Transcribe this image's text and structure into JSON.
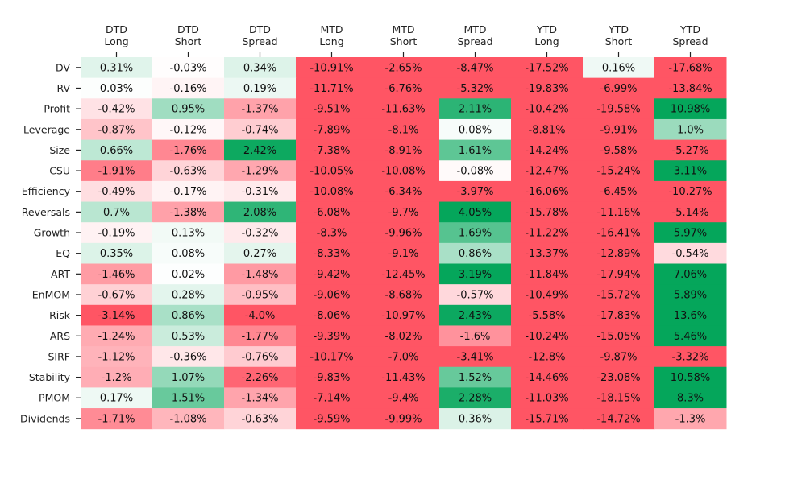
{
  "chart_data": {
    "type": "heatmap",
    "title": "",
    "xlabel": "",
    "ylabel": "",
    "colormap": {
      "negative": "#ff5564",
      "neutral": "#ffffff",
      "positive": "#05a65b",
      "scale_limit": 2.5
    },
    "columns": [
      [
        "DTD",
        "Long"
      ],
      [
        "DTD",
        "Short"
      ],
      [
        "DTD",
        "Spread"
      ],
      [
        "MTD",
        "Long"
      ],
      [
        "MTD",
        "Short"
      ],
      [
        "MTD",
        "Spread"
      ],
      [
        "YTD",
        "Long"
      ],
      [
        "YTD",
        "Short"
      ],
      [
        "YTD",
        "Spread"
      ]
    ],
    "rows": [
      "DV",
      "RV",
      "Profit",
      "Leverage",
      "Size",
      "CSU",
      "Efficiency",
      "Reversals",
      "Growth",
      "EQ",
      "ART",
      "EnMOM",
      "Risk",
      "ARS",
      "SIRF",
      "Stability",
      "PMOM",
      "Dividends"
    ],
    "values": [
      [
        0.31,
        -0.03,
        0.34,
        -10.91,
        -2.65,
        -8.47,
        -17.52,
        0.16,
        -17.68
      ],
      [
        0.03,
        -0.16,
        0.19,
        -11.71,
        -6.76,
        -5.32,
        -19.83,
        -6.99,
        -13.84
      ],
      [
        -0.42,
        0.95,
        -1.37,
        -9.51,
        -11.63,
        2.11,
        -10.42,
        -19.58,
        10.98
      ],
      [
        -0.87,
        -0.12,
        -0.74,
        -7.89,
        -8.1,
        0.08,
        -8.81,
        -9.91,
        1.0
      ],
      [
        0.66,
        -1.76,
        2.42,
        -7.38,
        -8.91,
        1.61,
        -14.24,
        -9.58,
        -5.27
      ],
      [
        -1.91,
        -0.63,
        -1.29,
        -10.05,
        -10.08,
        -0.08,
        -12.47,
        -15.24,
        3.11
      ],
      [
        -0.49,
        -0.17,
        -0.31,
        -10.08,
        -6.34,
        -3.97,
        -16.06,
        -6.45,
        -10.27
      ],
      [
        0.7,
        -1.38,
        2.08,
        -6.08,
        -9.7,
        4.05,
        -15.78,
        -11.16,
        -5.14
      ],
      [
        -0.19,
        0.13,
        -0.32,
        -8.3,
        -9.96,
        1.69,
        -11.22,
        -16.41,
        5.97
      ],
      [
        0.35,
        0.08,
        0.27,
        -8.33,
        -9.1,
        0.86,
        -13.37,
        -12.89,
        -0.54
      ],
      [
        -1.46,
        0.02,
        -1.48,
        -9.42,
        -12.45,
        3.19,
        -11.84,
        -17.94,
        7.06
      ],
      [
        -0.67,
        0.28,
        -0.95,
        -9.06,
        -8.68,
        -0.57,
        -10.49,
        -15.72,
        5.89
      ],
      [
        -3.14,
        0.86,
        -4.0,
        -8.06,
        -10.97,
        2.43,
        -5.58,
        -17.83,
        13.6
      ],
      [
        -1.24,
        0.53,
        -1.77,
        -9.39,
        -8.02,
        -1.6,
        -10.24,
        -15.05,
        5.46
      ],
      [
        -1.12,
        -0.36,
        -0.76,
        -10.17,
        -7.0,
        -3.41,
        -12.8,
        -9.87,
        -3.32
      ],
      [
        -1.2,
        1.07,
        -2.26,
        -9.83,
        -11.43,
        1.52,
        -14.46,
        -23.08,
        10.58
      ],
      [
        0.17,
        1.51,
        -1.34,
        -7.14,
        -9.4,
        2.28,
        -11.03,
        -18.15,
        8.3
      ],
      [
        -1.71,
        -1.08,
        -0.63,
        -9.59,
        -9.99,
        0.36,
        -15.71,
        -14.72,
        -1.3
      ]
    ],
    "cell_text": [
      [
        "0.31%",
        "-0.03%",
        "0.34%",
        "-10.91%",
        "-2.65%",
        "-8.47%",
        "-17.52%",
        "0.16%",
        "-17.68%"
      ],
      [
        "0.03%",
        "-0.16%",
        "0.19%",
        "-11.71%",
        "-6.76%",
        "-5.32%",
        "-19.83%",
        "-6.99%",
        "-13.84%"
      ],
      [
        "-0.42%",
        "0.95%",
        "-1.37%",
        "-9.51%",
        "-11.63%",
        "2.11%",
        "-10.42%",
        "-19.58%",
        "10.98%"
      ],
      [
        "-0.87%",
        "-0.12%",
        "-0.74%",
        "-7.89%",
        "-8.1%",
        "0.08%",
        "-8.81%",
        "-9.91%",
        "1.0%"
      ],
      [
        "0.66%",
        "-1.76%",
        "2.42%",
        "-7.38%",
        "-8.91%",
        "1.61%",
        "-14.24%",
        "-9.58%",
        "-5.27%"
      ],
      [
        "-1.91%",
        "-0.63%",
        "-1.29%",
        "-10.05%",
        "-10.08%",
        "-0.08%",
        "-12.47%",
        "-15.24%",
        "3.11%"
      ],
      [
        "-0.49%",
        "-0.17%",
        "-0.31%",
        "-10.08%",
        "-6.34%",
        "-3.97%",
        "-16.06%",
        "-6.45%",
        "-10.27%"
      ],
      [
        "0.7%",
        "-1.38%",
        "2.08%",
        "-6.08%",
        "-9.7%",
        "4.05%",
        "-15.78%",
        "-11.16%",
        "-5.14%"
      ],
      [
        "-0.19%",
        "0.13%",
        "-0.32%",
        "-8.3%",
        "-9.96%",
        "1.69%",
        "-11.22%",
        "-16.41%",
        "5.97%"
      ],
      [
        "0.35%",
        "0.08%",
        "0.27%",
        "-8.33%",
        "-9.1%",
        "0.86%",
        "-13.37%",
        "-12.89%",
        "-0.54%"
      ],
      [
        "-1.46%",
        "0.02%",
        "-1.48%",
        "-9.42%",
        "-12.45%",
        "3.19%",
        "-11.84%",
        "-17.94%",
        "7.06%"
      ],
      [
        "-0.67%",
        "0.28%",
        "-0.95%",
        "-9.06%",
        "-8.68%",
        "-0.57%",
        "-10.49%",
        "-15.72%",
        "5.89%"
      ],
      [
        "-3.14%",
        "0.86%",
        "-4.0%",
        "-8.06%",
        "-10.97%",
        "2.43%",
        "-5.58%",
        "-17.83%",
        "13.6%"
      ],
      [
        "-1.24%",
        "0.53%",
        "-1.77%",
        "-9.39%",
        "-8.02%",
        "-1.6%",
        "-10.24%",
        "-15.05%",
        "5.46%"
      ],
      [
        "-1.12%",
        "-0.36%",
        "-0.76%",
        "-10.17%",
        "-7.0%",
        "-3.41%",
        "-12.8%",
        "-9.87%",
        "-3.32%"
      ],
      [
        "-1.2%",
        "1.07%",
        "-2.26%",
        "-9.83%",
        "-11.43%",
        "1.52%",
        "-14.46%",
        "-23.08%",
        "10.58%"
      ],
      [
        "0.17%",
        "1.51%",
        "-1.34%",
        "-7.14%",
        "-9.4%",
        "2.28%",
        "-11.03%",
        "-18.15%",
        "8.3%"
      ],
      [
        "-1.71%",
        "-1.08%",
        "-0.63%",
        "-9.59%",
        "-9.99%",
        "0.36%",
        "-15.71%",
        "-14.72%",
        "-1.3%"
      ]
    ]
  }
}
